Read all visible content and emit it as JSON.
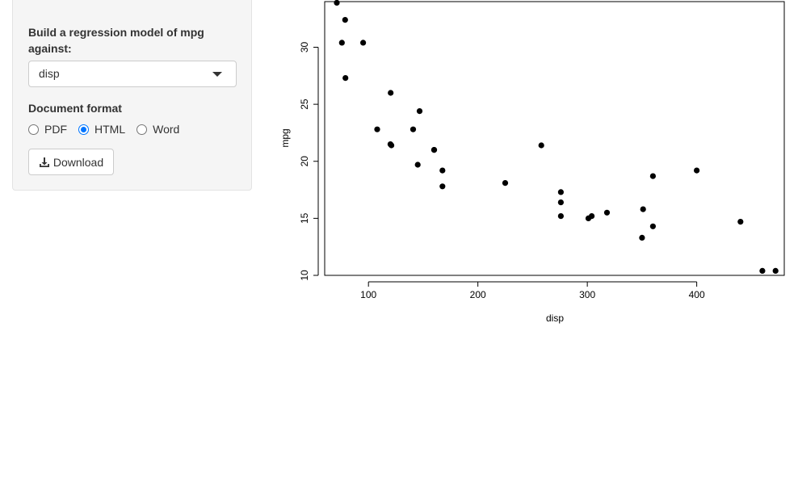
{
  "sidebar": {
    "model_label": "Build a regression model of mpg against:",
    "select": {
      "value": "disp"
    },
    "format_label": "Document format",
    "format_options": [
      {
        "label": "PDF",
        "checked": false
      },
      {
        "label": "HTML",
        "checked": true
      },
      {
        "label": "Word",
        "checked": false
      }
    ],
    "download_label": "Download"
  },
  "icons": {
    "select_caret": "caret-down-icon",
    "download": "download-icon"
  },
  "colors": {
    "radio_accent": "#0075ff",
    "panel_bg": "#f5f5f5"
  },
  "chart_data": {
    "type": "scatter",
    "title": "",
    "xlabel": "disp",
    "ylabel": "mpg",
    "xlim": [
      60,
      480
    ],
    "ylim": [
      10,
      34
    ],
    "x_ticks": [
      100,
      200,
      300,
      400
    ],
    "y_ticks": [
      10,
      15,
      20,
      25,
      30
    ],
    "grid": false,
    "points": [
      {
        "x": 160,
        "y": 21.0
      },
      {
        "x": 160,
        "y": 21.0
      },
      {
        "x": 108,
        "y": 22.8
      },
      {
        "x": 258,
        "y": 21.4
      },
      {
        "x": 360,
        "y": 18.7
      },
      {
        "x": 225,
        "y": 18.1
      },
      {
        "x": 360,
        "y": 14.3
      },
      {
        "x": 146.7,
        "y": 24.4
      },
      {
        "x": 140.8,
        "y": 22.8
      },
      {
        "x": 167.6,
        "y": 19.2
      },
      {
        "x": 167.6,
        "y": 17.8
      },
      {
        "x": 275.8,
        "y": 16.4
      },
      {
        "x": 275.8,
        "y": 17.3
      },
      {
        "x": 275.8,
        "y": 15.2
      },
      {
        "x": 472,
        "y": 10.4
      },
      {
        "x": 460,
        "y": 10.4
      },
      {
        "x": 440,
        "y": 14.7
      },
      {
        "x": 78.7,
        "y": 32.4
      },
      {
        "x": 75.7,
        "y": 30.4
      },
      {
        "x": 71.1,
        "y": 33.9
      },
      {
        "x": 120.1,
        "y": 21.5
      },
      {
        "x": 318,
        "y": 15.5
      },
      {
        "x": 304,
        "y": 15.2
      },
      {
        "x": 350,
        "y": 13.3
      },
      {
        "x": 400,
        "y": 19.2
      },
      {
        "x": 79,
        "y": 27.3
      },
      {
        "x": 120.3,
        "y": 26.0
      },
      {
        "x": 95.1,
        "y": 30.4
      },
      {
        "x": 351,
        "y": 15.8
      },
      {
        "x": 145,
        "y": 19.7
      },
      {
        "x": 301,
        "y": 15.0
      },
      {
        "x": 121,
        "y": 21.4
      }
    ]
  }
}
